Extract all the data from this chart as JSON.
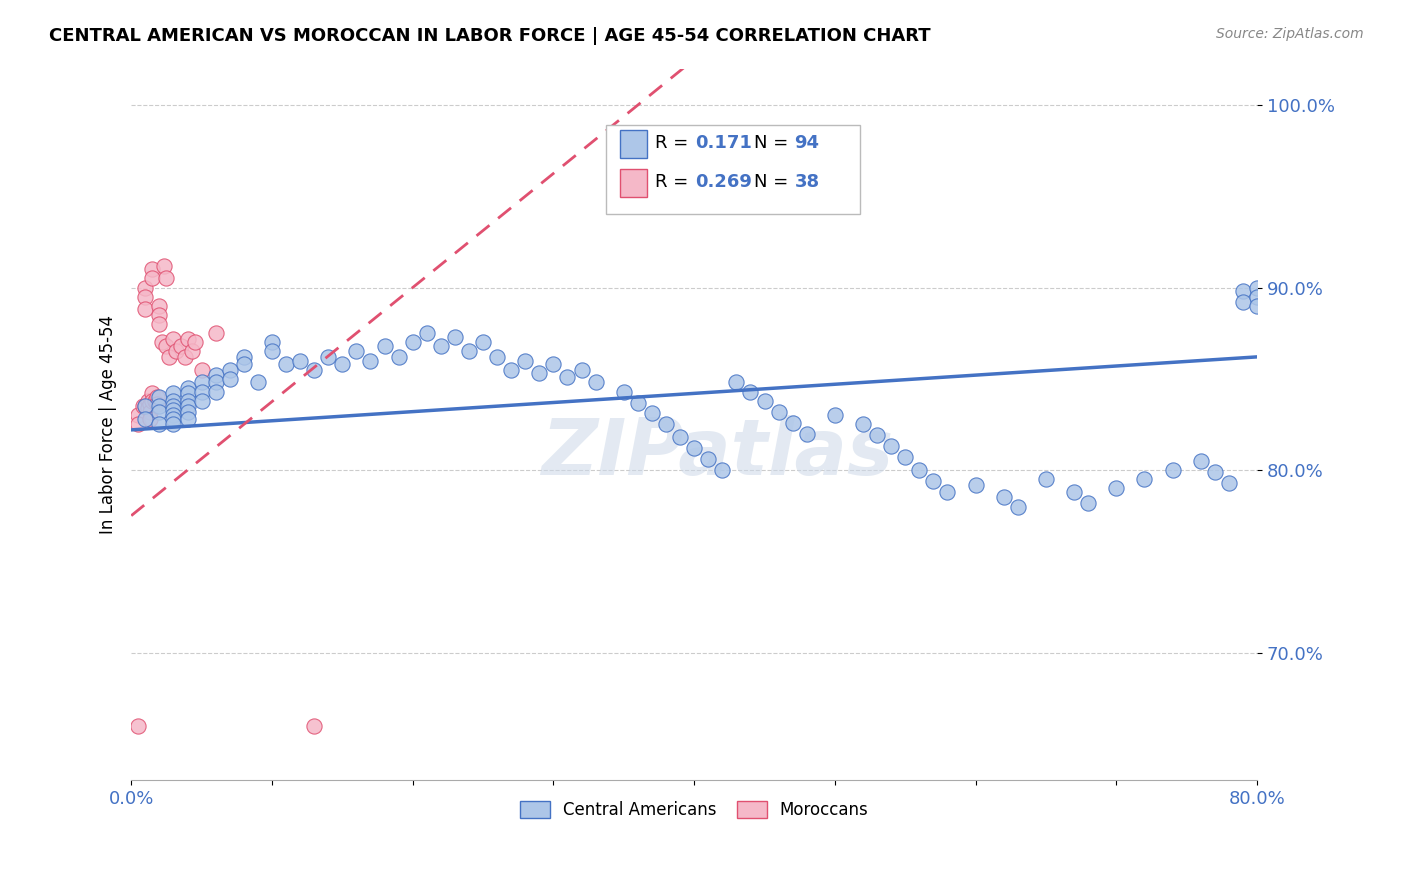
{
  "title": "CENTRAL AMERICAN VS MOROCCAN IN LABOR FORCE | AGE 45-54 CORRELATION CHART",
  "source_text": "Source: ZipAtlas.com",
  "ylabel": "In Labor Force | Age 45-54",
  "xlim": [
    0.0,
    0.8
  ],
  "ylim": [
    0.63,
    1.02
  ],
  "xticks": [
    0.0,
    0.1,
    0.2,
    0.3,
    0.4,
    0.5,
    0.6,
    0.7,
    0.8
  ],
  "ytick_labels": [
    "70.0%",
    "80.0%",
    "90.0%",
    "100.0%"
  ],
  "ytick_values": [
    0.7,
    0.8,
    0.9,
    1.0
  ],
  "xtick_labels_show": [
    "0.0%",
    "80.0%"
  ],
  "r_blue": 0.171,
  "n_blue": 94,
  "r_pink": 0.269,
  "n_pink": 38,
  "blue_color": "#adc6e8",
  "pink_color": "#f5b8c8",
  "blue_line_color": "#4472c4",
  "pink_line_color": "#e05070",
  "watermark": "ZIPatlas",
  "blue_trend_x0": 0.0,
  "blue_trend_y0": 0.822,
  "blue_trend_x1": 0.8,
  "blue_trend_y1": 0.862,
  "pink_trend_x0": 0.0,
  "pink_trend_y0": 0.775,
  "pink_trend_x1": 0.2,
  "pink_trend_y1": 0.9,
  "blue_scatter_x": [
    0.01,
    0.01,
    0.02,
    0.02,
    0.02,
    0.02,
    0.03,
    0.03,
    0.03,
    0.03,
    0.03,
    0.03,
    0.03,
    0.04,
    0.04,
    0.04,
    0.04,
    0.04,
    0.04,
    0.05,
    0.05,
    0.05,
    0.06,
    0.06,
    0.06,
    0.07,
    0.07,
    0.08,
    0.08,
    0.09,
    0.1,
    0.1,
    0.11,
    0.12,
    0.13,
    0.14,
    0.15,
    0.16,
    0.17,
    0.18,
    0.19,
    0.2,
    0.21,
    0.22,
    0.23,
    0.24,
    0.25,
    0.26,
    0.27,
    0.28,
    0.29,
    0.3,
    0.31,
    0.32,
    0.33,
    0.35,
    0.36,
    0.37,
    0.38,
    0.39,
    0.4,
    0.41,
    0.42,
    0.43,
    0.44,
    0.45,
    0.46,
    0.47,
    0.48,
    0.5,
    0.52,
    0.53,
    0.54,
    0.55,
    0.56,
    0.57,
    0.58,
    0.6,
    0.62,
    0.63,
    0.65,
    0.67,
    0.68,
    0.7,
    0.72,
    0.74,
    0.76,
    0.77,
    0.78,
    0.79,
    0.79,
    0.8,
    0.8,
    0.8
  ],
  "blue_scatter_y": [
    0.835,
    0.828,
    0.84,
    0.835,
    0.832,
    0.825,
    0.842,
    0.838,
    0.835,
    0.833,
    0.83,
    0.828,
    0.825,
    0.845,
    0.842,
    0.838,
    0.835,
    0.832,
    0.828,
    0.848,
    0.843,
    0.838,
    0.852,
    0.848,
    0.843,
    0.855,
    0.85,
    0.862,
    0.858,
    0.848,
    0.87,
    0.865,
    0.858,
    0.86,
    0.855,
    0.862,
    0.858,
    0.865,
    0.86,
    0.868,
    0.862,
    0.87,
    0.875,
    0.868,
    0.873,
    0.865,
    0.87,
    0.862,
    0.855,
    0.86,
    0.853,
    0.858,
    0.851,
    0.855,
    0.848,
    0.843,
    0.837,
    0.831,
    0.825,
    0.818,
    0.812,
    0.806,
    0.8,
    0.848,
    0.843,
    0.838,
    0.832,
    0.826,
    0.82,
    0.83,
    0.825,
    0.819,
    0.813,
    0.807,
    0.8,
    0.794,
    0.788,
    0.792,
    0.785,
    0.78,
    0.795,
    0.788,
    0.782,
    0.79,
    0.795,
    0.8,
    0.805,
    0.799,
    0.793,
    0.898,
    0.892,
    0.9,
    0.895,
    0.89
  ],
  "pink_scatter_x": [
    0.005,
    0.005,
    0.005,
    0.008,
    0.01,
    0.01,
    0.01,
    0.01,
    0.012,
    0.012,
    0.013,
    0.013,
    0.013,
    0.015,
    0.015,
    0.015,
    0.015,
    0.017,
    0.018,
    0.018,
    0.02,
    0.02,
    0.02,
    0.022,
    0.023,
    0.025,
    0.025,
    0.027,
    0.03,
    0.032,
    0.035,
    0.038,
    0.04,
    0.043,
    0.045,
    0.05,
    0.06,
    0.13
  ],
  "pink_scatter_y": [
    0.83,
    0.825,
    0.66,
    0.835,
    0.9,
    0.895,
    0.888,
    0.835,
    0.838,
    0.834,
    0.836,
    0.832,
    0.828,
    0.842,
    0.838,
    0.91,
    0.905,
    0.838,
    0.84,
    0.836,
    0.89,
    0.885,
    0.88,
    0.87,
    0.912,
    0.905,
    0.868,
    0.862,
    0.872,
    0.865,
    0.868,
    0.862,
    0.872,
    0.865,
    0.87,
    0.855,
    0.875,
    0.66
  ]
}
